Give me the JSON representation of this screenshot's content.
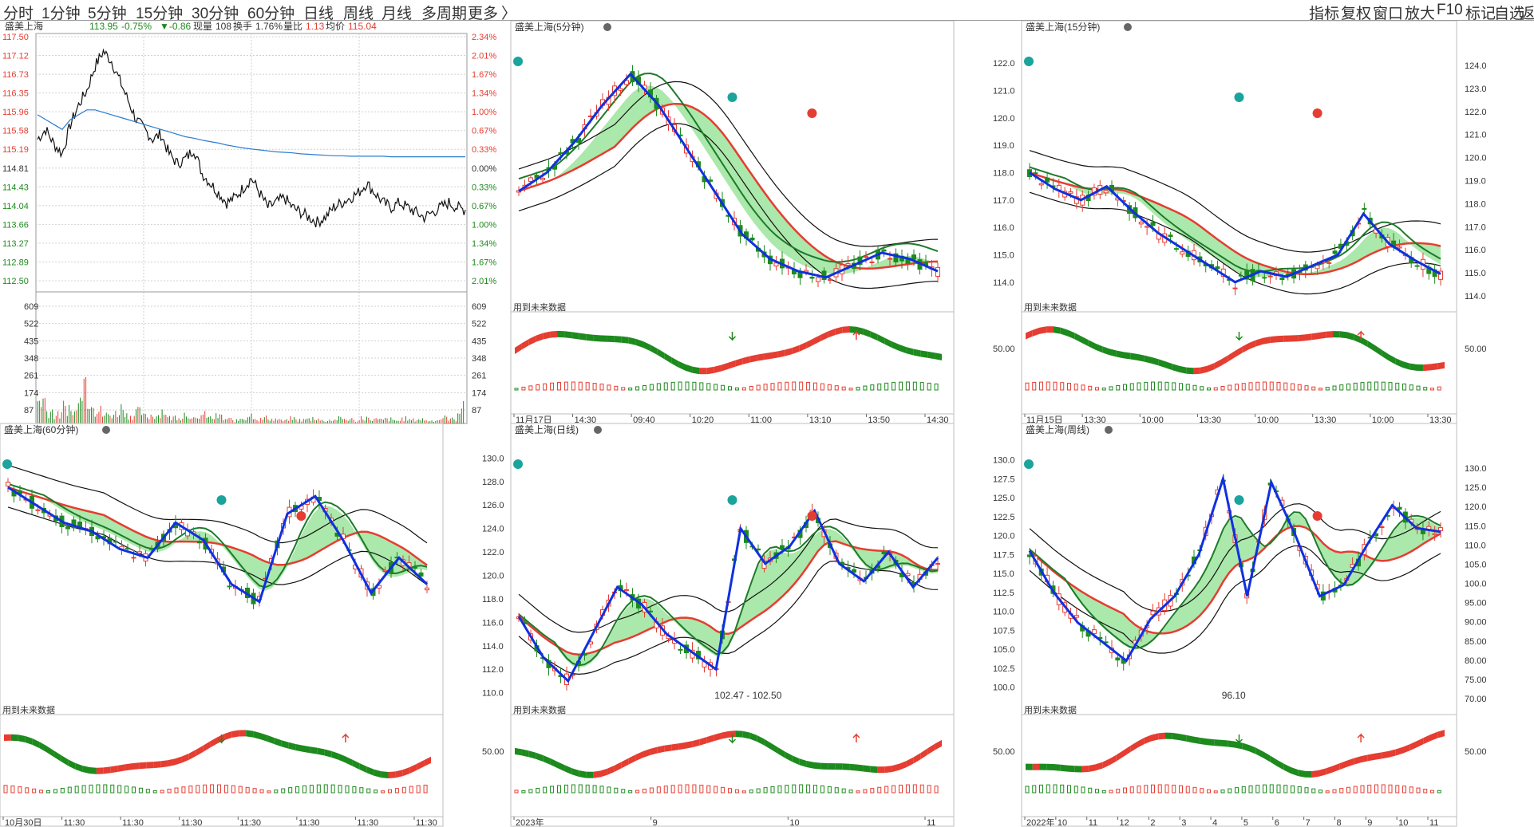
{
  "toolbar": {
    "tabs": [
      {
        "label": "分时",
        "active": false
      },
      {
        "label": "1分钟",
        "active": false
      },
      {
        "label": "5分钟",
        "active": false
      },
      {
        "label": "15分钟",
        "active": false
      },
      {
        "label": "30分钟",
        "active": false
      },
      {
        "label": "60分钟",
        "active": true
      },
      {
        "label": "日线",
        "active": false
      },
      {
        "label": "周线",
        "active": false
      },
      {
        "label": "月线",
        "active": false
      },
      {
        "label": "多周期",
        "active": false
      },
      {
        "label": "更多",
        "active": false
      }
    ],
    "more_arrow": "〉",
    "right_tools": [
      "指标",
      "复权",
      "窗口",
      "放大",
      "F10",
      "标记",
      "自选",
      "返回"
    ]
  },
  "colors": {
    "up": "#e53d31",
    "down": "#1d8a1d",
    "zigzag": "#1030e0",
    "avg": "#2b7bd0",
    "cloud_green": "#8fe08f",
    "cloud_cyan": "#a8e6ea",
    "grid": "#d0d0d0"
  },
  "intraday": {
    "stock": "盛美上海",
    "price": "113.95",
    "pct": "-0.75%",
    "change": "▼-0.86",
    "volume_label": "现量",
    "volume": "108",
    "turnover_label": "换手",
    "turnover": "1.76%",
    "ratio_label": "量比",
    "ratio": "1.13",
    "avg_label": "均价",
    "avg": "115.04",
    "price_ticks": [
      "117.50",
      "117.12",
      "116.73",
      "116.35",
      "115.96",
      "115.58",
      "115.19",
      "114.81",
      "114.43",
      "114.04",
      "113.66",
      "113.27",
      "112.89",
      "112.50"
    ],
    "pct_ticks": [
      "2.34%",
      "2.01%",
      "1.67%",
      "1.34%",
      "1.00%",
      "0.67%",
      "0.33%",
      "0.00%",
      "0.33%",
      "0.67%",
      "1.00%",
      "1.34%",
      "1.67%",
      "2.01%"
    ],
    "vol_ticks": [
      "609",
      "522",
      "435",
      "348",
      "261",
      "174",
      "87"
    ],
    "vol_ticks_right": [
      "609",
      "522",
      "435",
      "348",
      "261",
      "174",
      "87"
    ],
    "price_series": [
      115.4,
      115.6,
      115.3,
      115.1,
      115.7,
      116.1,
      116.4,
      116.9,
      117.2,
      117.0,
      116.6,
      116.2,
      115.8,
      115.6,
      115.4,
      115.5,
      115.1,
      114.9,
      115.0,
      115.2,
      114.7,
      114.5,
      114.3,
      114.1,
      114.2,
      114.4,
      114.6,
      114.3,
      114.0,
      114.1,
      114.2,
      114.0,
      113.9,
      113.8,
      113.7,
      113.8,
      114.0,
      114.1,
      114.2,
      114.3,
      114.5,
      114.3,
      114.1,
      114.0,
      114.1,
      114.0,
      113.9,
      113.8,
      113.9,
      114.0,
      114.1,
      114.0,
      113.95
    ],
    "avg_series": [
      115.9,
      115.8,
      115.7,
      115.6,
      115.8,
      115.9,
      116.0,
      116.0,
      115.95,
      115.9,
      115.85,
      115.8,
      115.75,
      115.7,
      115.65,
      115.6,
      115.55,
      115.5,
      115.45,
      115.42,
      115.38,
      115.35,
      115.32,
      115.28,
      115.25,
      115.22,
      115.2,
      115.18,
      115.16,
      115.14,
      115.13,
      115.12,
      115.1,
      115.09,
      115.08,
      115.07,
      115.06,
      115.06,
      115.05,
      115.05,
      115.05,
      115.05,
      115.05,
      115.04,
      115.04,
      115.04,
      115.04,
      115.04,
      115.04,
      115.04,
      115.04,
      115.04,
      115.04
    ],
    "volume_series": [
      170,
      90,
      60,
      120,
      80,
      330,
      200,
      90,
      60,
      70,
      110,
      60,
      80,
      50,
      60,
      90,
      40,
      50,
      70,
      30,
      60,
      40,
      50,
      30,
      20,
      40,
      60,
      30,
      40,
      30,
      20,
      35,
      25,
      30,
      40,
      20,
      25,
      35,
      30,
      20,
      45,
      30,
      25,
      30,
      20,
      35,
      25,
      30,
      20,
      25,
      40,
      30,
      108
    ]
  },
  "panels": [
    {
      "title": "盛美上海(5分钟)",
      "future_label": "用到未来数据",
      "y_ticks": [],
      "osc_tick": "",
      "x_ticks": [
        "11月17日",
        "14:30",
        "09:40",
        "10:20",
        "11:00",
        "13:10",
        "13:50",
        "14:30"
      ],
      "price_range": [
        113.5,
        117.5
      ]
    },
    {
      "title": "盛美上海(15分钟)",
      "future_label": "用到未来数据",
      "y_ticks": [
        "122.0",
        "121.0",
        "120.0",
        "119.0",
        "118.0",
        "117.0",
        "116.0",
        "115.0",
        "114.0"
      ],
      "y_ticks_right": [
        "124.0",
        "123.0",
        "122.0",
        "121.0",
        "120.0",
        "119.0",
        "118.0",
        "117.0",
        "116.0",
        "115.0",
        "114.0"
      ],
      "osc_tick": "50.00",
      "osc_tick_right": "50.00",
      "x_ticks": [
        "11月15日",
        "13:30",
        "10:00",
        "13:30",
        "10:00",
        "13:30",
        "10:00",
        "13:30"
      ],
      "price_range": [
        113.5,
        122.5
      ]
    },
    {
      "title": "盛美上海(60分钟)",
      "future_label": "用到未来数据",
      "y_ticks": [],
      "osc_tick": "",
      "x_ticks": [
        "10月30日",
        "11:30",
        "11:30",
        "11:30",
        "11:30",
        "11:30",
        "11:30",
        "11:30"
      ],
      "price_range": [
        108,
        122
      ]
    },
    {
      "title": "盛美上海(日线)",
      "future_label": "用到未来数据",
      "y_ticks": [
        "130.0",
        "128.0",
        "126.0",
        "124.0",
        "122.0",
        "120.0",
        "118.0",
        "116.0",
        "114.0",
        "112.0",
        "110.0"
      ],
      "osc_tick": "50.00",
      "x_ticks": [
        "2023年",
        "9",
        "10",
        "11"
      ],
      "annotation": "102.47 - 102.50",
      "price_range": [
        109.5,
        130.5
      ]
    },
    {
      "title": "盛美上海(周线)",
      "future_label": "用到未来数据",
      "y_ticks": [
        "130.0",
        "127.5",
        "125.0",
        "122.5",
        "120.0",
        "117.5",
        "115.0",
        "112.5",
        "110.0",
        "107.5",
        "105.0",
        "102.5",
        "100.0"
      ],
      "y_ticks_right": [
        "130.0",
        "125.0",
        "120.0",
        "115.0",
        "110.0",
        "105.0",
        "100.0",
        "95.00",
        "90.00",
        "85.00",
        "80.00",
        "75.00",
        "70.00"
      ],
      "osc_tick": "50.00",
      "osc_tick_right": "50.00",
      "x_ticks": [
        "2022年",
        "10",
        "11",
        "12",
        "2",
        "3",
        "4",
        "5",
        "6",
        "7",
        "8",
        "9",
        "10",
        "11"
      ],
      "annotation": "96.10",
      "price_range": [
        98.5,
        131
      ]
    }
  ]
}
